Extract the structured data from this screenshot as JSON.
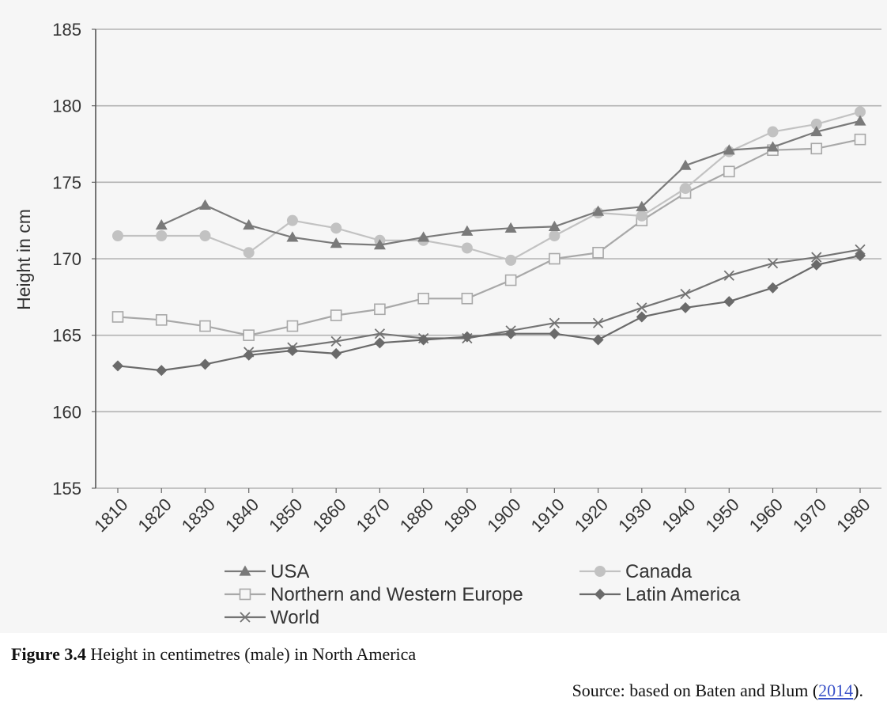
{
  "chart_data": {
    "type": "line",
    "title": "",
    "xlabel": "",
    "ylabel": "Height in cm",
    "ylim": [
      155,
      185
    ],
    "yticks": [
      155,
      160,
      165,
      170,
      175,
      180,
      185
    ],
    "x": [
      1810,
      1820,
      1830,
      1840,
      1850,
      1860,
      1870,
      1880,
      1890,
      1900,
      1910,
      1920,
      1930,
      1940,
      1950,
      1960,
      1970,
      1980
    ],
    "grid": "horizontal",
    "legend_position": "bottom",
    "series": [
      {
        "name": "USA",
        "marker": "triangle",
        "color": "#7a7a7a",
        "values": [
          null,
          172.2,
          173.5,
          172.2,
          171.4,
          171.0,
          170.9,
          171.4,
          171.8,
          172.0,
          172.1,
          173.1,
          173.4,
          176.1,
          177.1,
          177.3,
          178.3,
          179.0
        ]
      },
      {
        "name": "Canada",
        "marker": "circle",
        "color": "#c2c2c2",
        "values": [
          171.5,
          171.5,
          171.5,
          170.4,
          172.5,
          172.0,
          171.2,
          171.2,
          170.7,
          169.9,
          171.5,
          173.0,
          172.8,
          174.6,
          177.0,
          178.3,
          178.8,
          179.6
        ]
      },
      {
        "name": "Northern and Western Europe",
        "marker": "open-square",
        "color": "#a8a8a8",
        "values": [
          166.2,
          166.0,
          165.6,
          165.0,
          165.6,
          166.3,
          166.7,
          167.4,
          167.4,
          168.6,
          170.0,
          170.4,
          172.5,
          174.3,
          175.7,
          177.1,
          177.2,
          177.8
        ]
      },
      {
        "name": "Latin America",
        "marker": "diamond",
        "color": "#6a6a6a",
        "values": [
          163.0,
          162.7,
          163.1,
          163.7,
          164.0,
          163.8,
          164.5,
          164.7,
          164.9,
          165.1,
          165.1,
          164.7,
          166.2,
          166.8,
          167.2,
          168.1,
          169.6,
          170.2
        ]
      },
      {
        "name": "World",
        "marker": "cross",
        "color": "#747474",
        "values": [
          null,
          null,
          null,
          163.9,
          164.2,
          164.6,
          165.1,
          164.8,
          164.8,
          165.3,
          165.8,
          165.8,
          166.8,
          167.7,
          168.9,
          169.7,
          170.1,
          170.6
        ]
      }
    ]
  },
  "figure": {
    "label": "Figure 3.4",
    "caption": "Height in centimetres (male) in North America",
    "source_prefix": "Source: based on Baten and Blum (",
    "source_year": "2014",
    "source_suffix": ")."
  }
}
